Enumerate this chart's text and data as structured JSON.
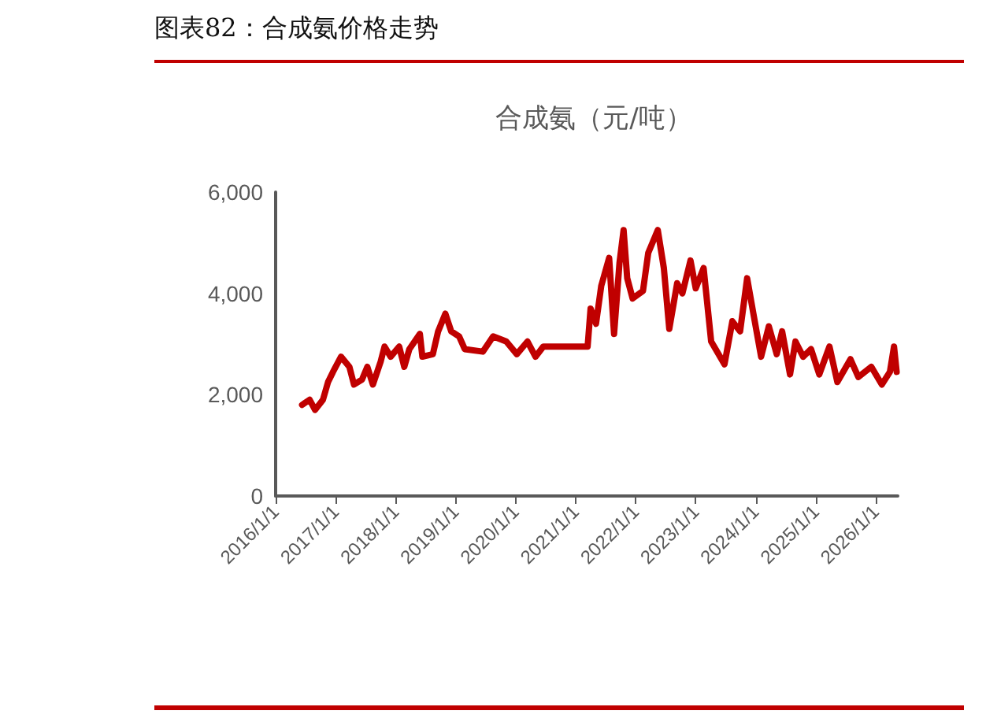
{
  "chart_data": {
    "type": "line",
    "title": "图表82：合成氨价格走势",
    "subtitle": "合成氨（元/吨）",
    "x": [
      "2016-06-10",
      "2016-07-26",
      "2016-08-28",
      "2016-10-15",
      "2016-11-15",
      "2016-12-15",
      "2017-02-02",
      "2017-03-25",
      "2017-04-22",
      "2017-06-10",
      "2017-07-12",
      "2017-08-15",
      "2017-10-01",
      "2017-10-25",
      "2017-12-01",
      "2018-01-22",
      "2018-02-22",
      "2018-03-25",
      "2018-05-28",
      "2018-06-12",
      "2018-08-15",
      "2018-09-16",
      "2018-10-30",
      "2018-12-05",
      "2019-01-22",
      "2019-02-25",
      "2019-06-15",
      "2019-08-17",
      "2019-11-05",
      "2020-01-08",
      "2020-03-13",
      "2020-05-01",
      "2020-06-17",
      "2021-03-14",
      "2021-04-01",
      "2021-05-04",
      "2021-06-05",
      "2021-07-23",
      "2021-08-22",
      "2021-09-24",
      "2021-10-19",
      "2021-11-10",
      "2021-12-13",
      "2022-02-14",
      "2022-03-18",
      "2022-05-15",
      "2022-06-21",
      "2022-07-24",
      "2022-09-10",
      "2022-10-12",
      "2022-11-30",
      "2023-01-01",
      "2023-02-18",
      "2023-04-05",
      "2023-06-25",
      "2023-08-12",
      "2023-09-28",
      "2023-11-10",
      "2023-12-18",
      "2024-02-03",
      "2024-03-21",
      "2024-05-08",
      "2024-06-10",
      "2024-07-28",
      "2024-08-30",
      "2024-10-16",
      "2024-12-03",
      "2025-01-22",
      "2025-03-25",
      "2025-05-12",
      "2025-07-31",
      "2025-09-17",
      "2025-12-05",
      "2026-02-07",
      "2026-03-28",
      "2026-04-22",
      "2026-05-08"
    ],
    "series": [
      {
        "color": "#c00000",
        "values": [
          1800,
          1900,
          1700,
          1900,
          2250,
          2450,
          2750,
          2550,
          2200,
          2300,
          2550,
          2200,
          2650,
          2950,
          2750,
          2950,
          2550,
          2900,
          3200,
          2750,
          2800,
          3250,
          3600,
          3250,
          3150,
          2900,
          2850,
          3150,
          3050,
          2800,
          3050,
          2750,
          2950,
          2950,
          3700,
          3400,
          4150,
          4700,
          3200,
          4600,
          5250,
          4300,
          3900,
          4050,
          4800,
          5250,
          4500,
          3300,
          4200,
          4000,
          4650,
          4100,
          4500,
          3050,
          2600,
          3450,
          3250,
          4300,
          3600,
          2750,
          3350,
          2800,
          3250,
          2400,
          3050,
          2750,
          2900,
          2400,
          2950,
          2250,
          2700,
          2350,
          2550,
          2200,
          2450,
          2950,
          2450
        ]
      }
    ],
    "xlim": [
      "2016-01-01",
      "2026-05-15"
    ],
    "xticks": [
      {
        "value": "2016-01-01",
        "label": "2016/1/1"
      },
      {
        "value": "2017-01-01",
        "label": "2017/1/1"
      },
      {
        "value": "2018-01-01",
        "label": "2018/1/1"
      },
      {
        "value": "2019-01-01",
        "label": "2019/1/1"
      },
      {
        "value": "2020-01-01",
        "label": "2020/1/1"
      },
      {
        "value": "2021-01-01",
        "label": "2021/1/1"
      },
      {
        "value": "2022-01-01",
        "label": "2022/1/1"
      },
      {
        "value": "2023-01-01",
        "label": "2023/1/1"
      },
      {
        "value": "2024-01-01",
        "label": "2024/1/1"
      },
      {
        "value": "2025-01-01",
        "label": "2025/1/1"
      },
      {
        "value": "2026-01-01",
        "label": "2026/1/1"
      }
    ],
    "ylim": [
      0,
      6000
    ],
    "yticks": [
      0,
      {
        "value": 2000,
        "label": "2,000"
      },
      {
        "value": 4000,
        "label": "4,000"
      },
      {
        "value": 6000,
        "label": "6,000"
      }
    ],
    "grid": false,
    "marker": "none",
    "line_style": "solid"
  }
}
